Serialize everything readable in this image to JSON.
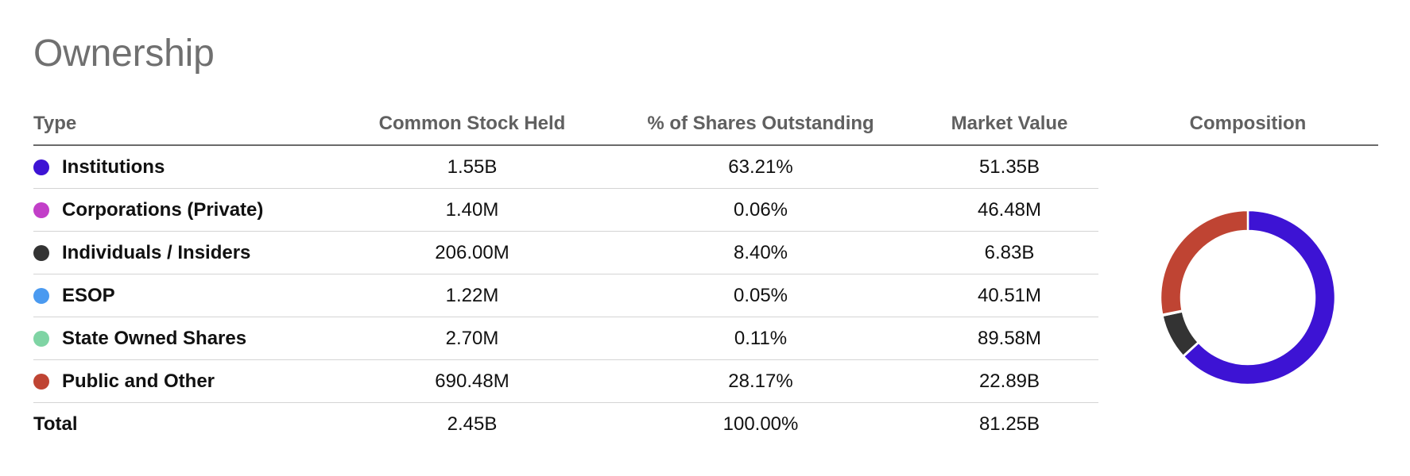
{
  "title": "Ownership",
  "headers": {
    "type": "Type",
    "common_stock_held": "Common Stock Held",
    "pct_outstanding": "% of Shares Outstanding",
    "market_value": "Market Value",
    "composition": "Composition"
  },
  "rows": [
    {
      "type": "Institutions",
      "held": "1.55B",
      "pct": "63.21%",
      "value": "51.35B",
      "color": "#3d13d4"
    },
    {
      "type": "Corporations (Private)",
      "held": "1.40M",
      "pct": "0.06%",
      "value": "46.48M",
      "color": "#c23fc8"
    },
    {
      "type": "Individuals / Insiders",
      "held": "206.00M",
      "pct": "8.40%",
      "value": "6.83B",
      "color": "#333333"
    },
    {
      "type": "ESOP",
      "held": "1.22M",
      "pct": "0.05%",
      "value": "40.51M",
      "color": "#4a9af0"
    },
    {
      "type": "State Owned Shares",
      "held": "2.70M",
      "pct": "0.11%",
      "value": "89.58M",
      "color": "#7fd4a4"
    },
    {
      "type": "Public and Other",
      "held": "690.48M",
      "pct": "28.17%",
      "value": "22.89B",
      "color": "#bf4433"
    }
  ],
  "total": {
    "type": "Total",
    "held": "2.45B",
    "pct": "100.00%",
    "value": "81.25B"
  },
  "chart_data": {
    "type": "pie",
    "donut": true,
    "categories": [
      "Institutions",
      "Corporations (Private)",
      "Individuals / Insiders",
      "ESOP",
      "State Owned Shares",
      "Public and Other"
    ],
    "values": [
      63.21,
      0.06,
      8.4,
      0.05,
      0.11,
      28.17
    ],
    "colors": [
      "#3d13d4",
      "#c23fc8",
      "#333333",
      "#4a9af0",
      "#7fd4a4",
      "#bf4433"
    ],
    "title": "Composition"
  }
}
